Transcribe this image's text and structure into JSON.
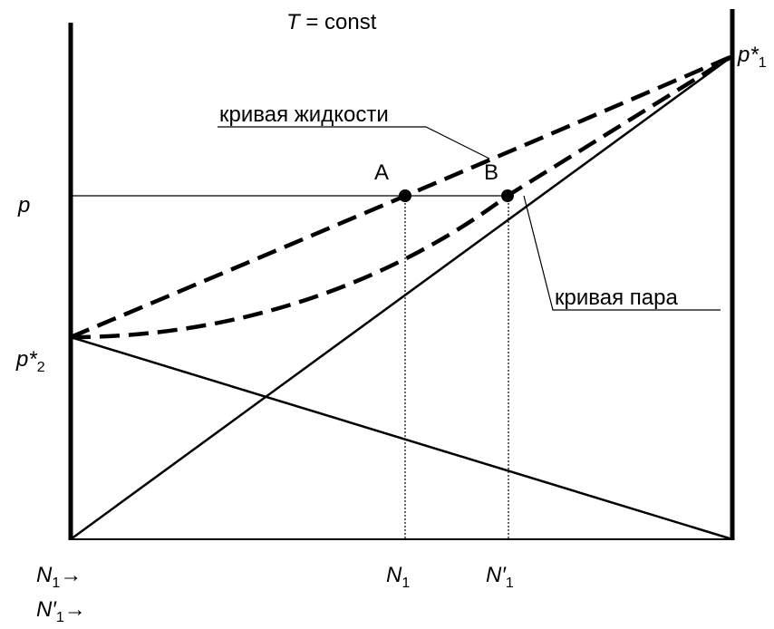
{
  "title": {
    "symbol": "T",
    "rest": " = const"
  },
  "curves": {
    "liquid": "кривая жидкости",
    "vapor": "кривая пара"
  },
  "points": [
    "A",
    "B"
  ],
  "y_labels": {
    "p": "p",
    "p_star_2": {
      "base": "p*",
      "sub": "2"
    },
    "p_star_1": {
      "base": "p*",
      "sub": "1"
    }
  },
  "x_axis": [
    {
      "base": "N",
      "sub": "1",
      "suffix": "→"
    },
    {
      "base": "N′",
      "sub": "1",
      "suffix": "→"
    }
  ],
  "x_marks": [
    {
      "base": "N",
      "sub": "1"
    },
    {
      "base": "N′",
      "sub": "1"
    }
  ]
}
